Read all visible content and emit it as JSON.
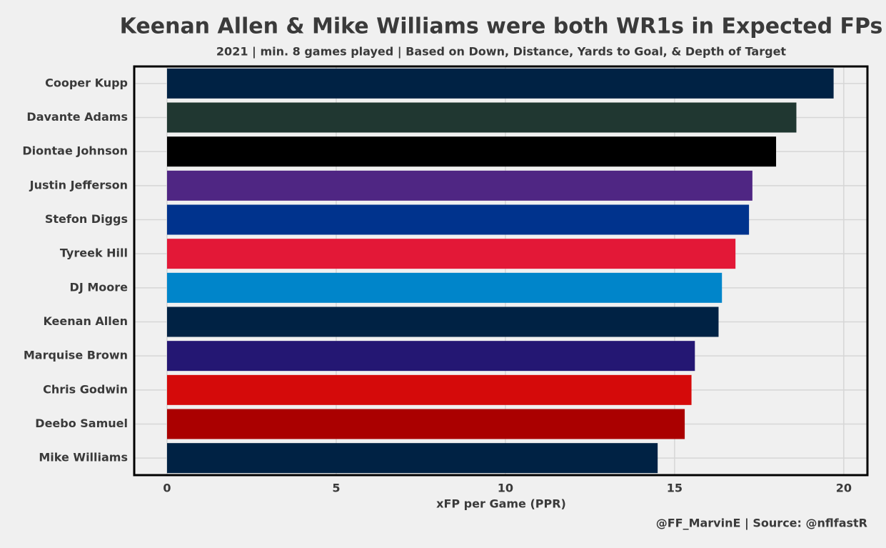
{
  "chart_data": {
    "type": "barh",
    "title": "Keenan Allen & Mike Williams were both WR1s in Expected FPs",
    "subtitle": "2021 | min. 8 games played | Based on Down, Distance, Yards to Goal, & Depth of Target",
    "xlabel": "xFP per Game (PPR)",
    "caption": "@FF_MarvinE | Source: @nflfastR",
    "categories": [
      "Cooper Kupp",
      "Davante Adams",
      "Diontae Johnson",
      "Justin Jefferson",
      "Stefon Diggs",
      "Tyreek Hill",
      "DJ Moore",
      "Keenan Allen",
      "Marquise Brown",
      "Chris Godwin",
      "Deebo Samuel",
      "Mike Williams"
    ],
    "values": [
      19.7,
      18.6,
      18.0,
      17.3,
      17.2,
      16.8,
      16.4,
      16.3,
      15.6,
      15.5,
      15.3,
      14.5
    ],
    "colors": [
      "#002244",
      "#203731",
      "#000000",
      "#4f2683",
      "#00338d",
      "#e31837",
      "#0085ca",
      "#002244",
      "#241773",
      "#d50a0a",
      "#aa0000",
      "#002244"
    ],
    "xlim": [
      -0.97,
      20.7
    ],
    "xticks": [
      0,
      5,
      10,
      15,
      20
    ],
    "grid": true
  }
}
